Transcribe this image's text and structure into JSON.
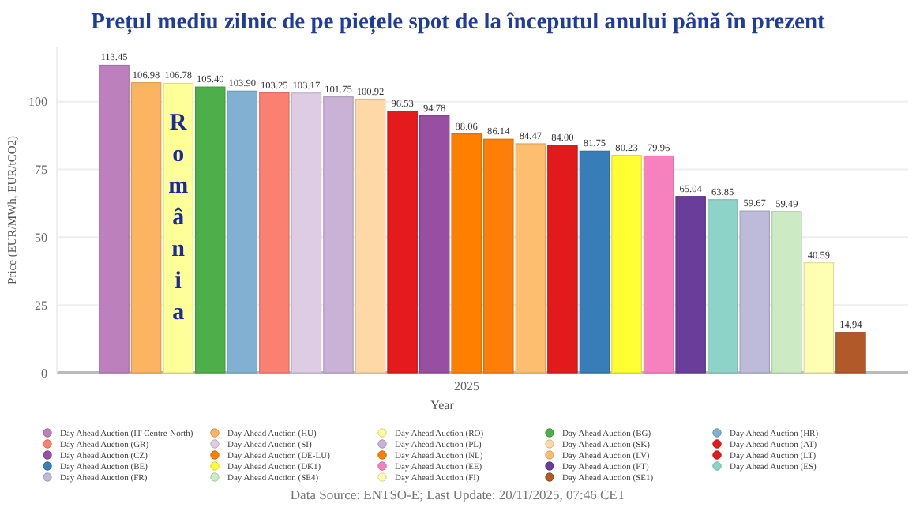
{
  "chart_data": {
    "type": "bar",
    "title": "Prețul mediu zilnic de pe piețele spot de la începutul anului până în prezent",
    "xlabel": "Year",
    "ylabel": "Price (EUR/MWh, EUR/tCO2)",
    "categories": [
      "2025"
    ],
    "ylim": [
      0,
      120
    ],
    "yticks": [
      0,
      25,
      50,
      75,
      100
    ],
    "grid": "y",
    "legend": "bottom",
    "annotations": [
      "România",
      "Data Source: ENTSO-E; Last Update: 20/11/2025, 07:46 CET"
    ],
    "series": [
      {
        "name": "Day Ahead Auction (IT-Centre-North)",
        "color": "#bc80bd",
        "values": [
          113.45
        ],
        "value_labels": [
          "113.45"
        ]
      },
      {
        "name": "Day Ahead Auction (HU)",
        "color": "#fdb462",
        "values": [
          106.98
        ],
        "value_labels": [
          "106.98"
        ]
      },
      {
        "name": "Day Ahead Auction (RO)",
        "color": "#ffff99",
        "values": [
          106.78
        ],
        "value_labels": [
          "106.78"
        ]
      },
      {
        "name": "Day Ahead Auction (BG)",
        "color": "#4daf4a",
        "values": [
          105.4
        ],
        "value_labels": [
          "105.40"
        ]
      },
      {
        "name": "Day Ahead Auction (HR)",
        "color": "#80b1d3",
        "values": [
          103.9
        ],
        "value_labels": [
          "103.90"
        ]
      },
      {
        "name": "Day Ahead Auction (GR)",
        "color": "#fb8072",
        "values": [
          103.25
        ],
        "value_labels": [
          "103.25"
        ]
      },
      {
        "name": "Day Ahead Auction (SI)",
        "color": "#decbe4",
        "values": [
          103.17
        ],
        "value_labels": [
          "103.17"
        ]
      },
      {
        "name": "Day Ahead Auction (PL)",
        "color": "#cab2d6",
        "values": [
          101.75
        ],
        "value_labels": [
          "101.75"
        ]
      },
      {
        "name": "Day Ahead Auction (SK)",
        "color": "#fed9a6",
        "values": [
          100.92
        ],
        "value_labels": [
          "100.92"
        ]
      },
      {
        "name": "Day Ahead Auction (AT)",
        "color": "#e41a1c",
        "values": [
          96.53
        ],
        "value_labels": [
          "96.53"
        ]
      },
      {
        "name": "Day Ahead Auction (CZ)",
        "color": "#984ea3",
        "values": [
          94.78
        ],
        "value_labels": [
          "94.78"
        ]
      },
      {
        "name": "Day Ahead Auction (DE-LU)",
        "color": "#ff7f00",
        "values": [
          88.06
        ],
        "value_labels": [
          "88.06"
        ]
      },
      {
        "name": "Day Ahead Auction (NL)",
        "color": "#fd7f0a",
        "values": [
          86.14
        ],
        "value_labels": [
          "86.14"
        ]
      },
      {
        "name": "Day Ahead Auction (LV)",
        "color": "#fdbf6f",
        "values": [
          84.47
        ],
        "value_labels": [
          "84.47"
        ]
      },
      {
        "name": "Day Ahead Auction (LT)",
        "color": "#e31a1c",
        "values": [
          84.0
        ],
        "value_labels": [
          "84.00"
        ]
      },
      {
        "name": "Day Ahead Auction (BE)",
        "color": "#377eb8",
        "values": [
          81.75
        ],
        "value_labels": [
          "81.75"
        ]
      },
      {
        "name": "Day Ahead Auction (DK1)",
        "color": "#ffff33",
        "values": [
          80.23
        ],
        "value_labels": [
          "80.23"
        ]
      },
      {
        "name": "Day Ahead Auction (EE)",
        "color": "#f781bf",
        "values": [
          79.96
        ],
        "value_labels": [
          "79.96"
        ]
      },
      {
        "name": "Day Ahead Auction (PT)",
        "color": "#6a3d9a",
        "values": [
          65.04
        ],
        "value_labels": [
          "65.04"
        ]
      },
      {
        "name": "Day Ahead Auction (ES)",
        "color": "#8dd3c7",
        "values": [
          63.85
        ],
        "value_labels": [
          "63.85"
        ]
      },
      {
        "name": "Day Ahead Auction (FR)",
        "color": "#bebada",
        "values": [
          59.67
        ],
        "value_labels": [
          "59.67"
        ]
      },
      {
        "name": "Day Ahead Auction (SE4)",
        "color": "#ccebc5",
        "values": [
          59.49
        ],
        "value_labels": [
          "59.49"
        ]
      },
      {
        "name": "Day Ahead Auction (FI)",
        "color": "#ffffb3",
        "values": [
          40.59
        ],
        "value_labels": [
          "40.59"
        ]
      },
      {
        "name": "Day Ahead Auction (SE1)",
        "color": "#b15928",
        "values": [
          14.94
        ],
        "value_labels": [
          "14.94"
        ]
      }
    ]
  }
}
